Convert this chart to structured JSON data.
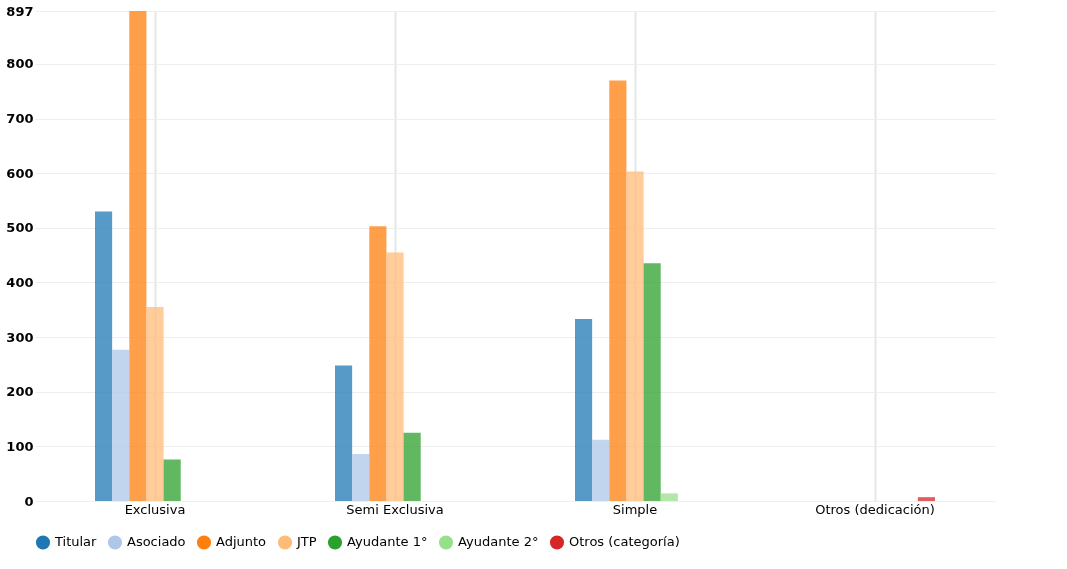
{
  "chart_data": {
    "type": "bar",
    "categories": [
      "Exclusiva",
      "Semi Exclusiva",
      "Simple",
      "Otros (dedicación)"
    ],
    "series": [
      {
        "name": "Titular",
        "color": "#1f77b4",
        "values": [
          530,
          248,
          333,
          0
        ]
      },
      {
        "name": "Asociado",
        "color": "#aec7e8",
        "values": [
          277,
          86,
          112,
          0
        ]
      },
      {
        "name": "Adjunto",
        "color": "#ff7f0e",
        "values": [
          897,
          503,
          770,
          0
        ]
      },
      {
        "name": "JTP",
        "color": "#ffbb78",
        "values": [
          355,
          455,
          603,
          0
        ]
      },
      {
        "name": "Ayudante 1°",
        "color": "#2ca02c",
        "values": [
          76,
          125,
          435,
          0
        ]
      },
      {
        "name": "Ayudante 2°",
        "color": "#98df8a",
        "values": [
          0,
          0,
          14,
          0
        ]
      },
      {
        "name": "Otros (categoría)",
        "color": "#d62728",
        "values": [
          0,
          0,
          0,
          7
        ]
      }
    ],
    "ylim": [
      0,
      897
    ],
    "yticks": [
      0,
      100,
      200,
      300,
      400,
      500,
      600,
      700,
      800,
      897
    ],
    "grid": true,
    "legend": "bottom"
  }
}
